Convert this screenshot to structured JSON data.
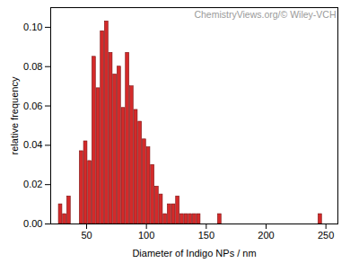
{
  "chart_data": {
    "type": "histogram",
    "annotation": "ChemistryViews.org/© Wiley-VCH",
    "x_label": "Diameter of Indigo NPs / nm",
    "y_label": "relative frequency",
    "bins": [
      26.5,
      30,
      33.5,
      37,
      40.5,
      44,
      47.5,
      51,
      54.5,
      58,
      61.5,
      65,
      68.5,
      72,
      75.5,
      79,
      82.5,
      86,
      89.5,
      93,
      96.5,
      100,
      103.5,
      107,
      110.5,
      114,
      117.5,
      121,
      124.5,
      128,
      131.5,
      135,
      138.5,
      142,
      145.5,
      149,
      152.5,
      156,
      159.5,
      163,
      166.5,
      170,
      173.5,
      177,
      180.5,
      184,
      187.5,
      191,
      194.5,
      198,
      201.5,
      205,
      208.5,
      212,
      215.5,
      219,
      222.5,
      226,
      229.5,
      233,
      236.5,
      240,
      243.5,
      247
    ],
    "values": [
      0.01,
      0.005,
      0.014,
      0,
      0,
      0.037,
      0.042,
      0.032,
      0.085,
      0.069,
      0.098,
      0.103,
      0.087,
      0.076,
      0.08,
      0.059,
      0.087,
      0.07,
      0.058,
      0.052,
      0.043,
      0.039,
      0.03,
      0.019,
      0.015,
      0.005,
      0.01,
      0.01,
      0.014,
      0.005,
      0.005,
      0.005,
      0.005,
      0.005,
      0,
      0,
      0,
      0,
      0.005,
      0,
      0,
      0,
      0,
      0,
      0,
      0,
      0,
      0,
      0,
      0,
      0,
      0,
      0,
      0,
      0,
      0,
      0,
      0,
      0,
      0,
      0,
      0,
      0.005
    ],
    "color": "#d42a2a",
    "xlim": [
      20,
      260
    ],
    "xticks": [
      50,
      100,
      150,
      200,
      250
    ],
    "ylim": [
      0,
      0.11
    ],
    "yticks": [
      {
        "value": 0,
        "label": "0.00"
      },
      {
        "value": 0.02,
        "label": "0.02"
      },
      {
        "value": 0.04,
        "label": "0.04"
      },
      {
        "value": 0.06,
        "label": "0.06"
      },
      {
        "value": 0.08,
        "label": "0.08"
      },
      {
        "value": 0.1,
        "label": "0.10"
      }
    ],
    "grid": false
  }
}
